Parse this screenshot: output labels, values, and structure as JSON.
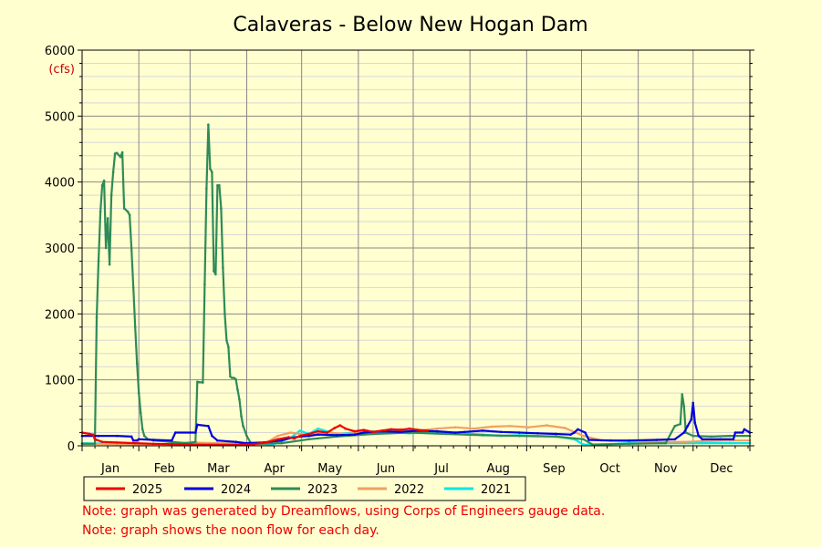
{
  "notes": [
    "Note: graph was generated by Dreamflows, using Corps of Engineers gauge data.",
    "Note: graph shows the noon flow for each day."
  ],
  "chart_data": {
    "type": "line",
    "title": "Calaveras - Below New Hogan Dam",
    "ylabel_unit": "(cfs)",
    "ylim": [
      0,
      6000
    ],
    "yticks": [
      0,
      1000,
      2000,
      3000,
      4000,
      5000,
      6000
    ],
    "xlim": [
      1,
      366
    ],
    "month_labels": [
      "Jan",
      "Feb",
      "Mar",
      "Apr",
      "May",
      "Jun",
      "Jul",
      "Aug",
      "Sep",
      "Oct",
      "Nov",
      "Dec"
    ],
    "month_starts": [
      1,
      32,
      60,
      91,
      121,
      152,
      182,
      213,
      244,
      274,
      305,
      335,
      366
    ],
    "grid": true,
    "legend_position": "bottom",
    "series": [
      {
        "name": "2021",
        "color": "#00e8e8",
        "points": [
          [
            1,
            40
          ],
          [
            20,
            30
          ],
          [
            40,
            25
          ],
          [
            60,
            20
          ],
          [
            75,
            20
          ],
          [
            85,
            60
          ],
          [
            95,
            30
          ],
          [
            105,
            20
          ],
          [
            115,
            120
          ],
          [
            120,
            230
          ],
          [
            125,
            180
          ],
          [
            130,
            260
          ],
          [
            140,
            180
          ],
          [
            150,
            200
          ],
          [
            160,
            220
          ],
          [
            170,
            200
          ],
          [
            180,
            190
          ],
          [
            190,
            210
          ],
          [
            200,
            200
          ],
          [
            210,
            190
          ],
          [
            220,
            170
          ],
          [
            230,
            150
          ],
          [
            240,
            160
          ],
          [
            250,
            150
          ],
          [
            260,
            140
          ],
          [
            270,
            100
          ],
          [
            275,
            20
          ],
          [
            285,
            20
          ],
          [
            300,
            40
          ],
          [
            320,
            40
          ],
          [
            340,
            40
          ],
          [
            355,
            40
          ],
          [
            366,
            40
          ]
        ]
      },
      {
        "name": "2022",
        "color": "#f0a060",
        "points": [
          [
            1,
            30
          ],
          [
            20,
            25
          ],
          [
            40,
            20
          ],
          [
            60,
            50
          ],
          [
            75,
            40
          ],
          [
            90,
            30
          ],
          [
            100,
            20
          ],
          [
            108,
            150
          ],
          [
            115,
            200
          ],
          [
            125,
            160
          ],
          [
            135,
            200
          ],
          [
            145,
            180
          ],
          [
            155,
            200
          ],
          [
            165,
            230
          ],
          [
            175,
            250
          ],
          [
            185,
            230
          ],
          [
            195,
            260
          ],
          [
            205,
            280
          ],
          [
            215,
            260
          ],
          [
            225,
            290
          ],
          [
            235,
            300
          ],
          [
            245,
            280
          ],
          [
            255,
            310
          ],
          [
            265,
            270
          ],
          [
            275,
            150
          ],
          [
            285,
            80
          ],
          [
            300,
            70
          ],
          [
            315,
            60
          ],
          [
            330,
            60
          ],
          [
            340,
            70
          ],
          [
            355,
            80
          ],
          [
            366,
            80
          ]
        ]
      },
      {
        "name": "2023",
        "color": "#2e8b57",
        "points": [
          [
            1,
            30
          ],
          [
            8,
            30
          ],
          [
            9,
            1950
          ],
          [
            10,
            2800
          ],
          [
            11,
            3550
          ],
          [
            12,
            3950
          ],
          [
            13,
            4020
          ],
          [
            14,
            3000
          ],
          [
            15,
            3450
          ],
          [
            16,
            2750
          ],
          [
            17,
            3800
          ],
          [
            18,
            4150
          ],
          [
            19,
            4430
          ],
          [
            20,
            4440
          ],
          [
            22,
            4380
          ],
          [
            23,
            4450
          ],
          [
            24,
            3600
          ],
          [
            26,
            3550
          ],
          [
            27,
            3500
          ],
          [
            28,
            3000
          ],
          [
            29,
            2400
          ],
          [
            30,
            1800
          ],
          [
            31,
            1250
          ],
          [
            32,
            800
          ],
          [
            33,
            500
          ],
          [
            34,
            250
          ],
          [
            35,
            150
          ],
          [
            37,
            100
          ],
          [
            40,
            80
          ],
          [
            50,
            60
          ],
          [
            58,
            40
          ],
          [
            63,
            60
          ],
          [
            64,
            970
          ],
          [
            67,
            960
          ],
          [
            68,
            2450
          ],
          [
            69,
            3900
          ],
          [
            70,
            4870
          ],
          [
            71,
            4200
          ],
          [
            72,
            4150
          ],
          [
            73,
            2650
          ],
          [
            74,
            2600
          ],
          [
            75,
            3950
          ],
          [
            76,
            3950
          ],
          [
            77,
            3600
          ],
          [
            78,
            2700
          ],
          [
            79,
            2000
          ],
          [
            80,
            1600
          ],
          [
            81,
            1500
          ],
          [
            82,
            1050
          ],
          [
            83,
            1030
          ],
          [
            84,
            1030
          ],
          [
            85,
            1010
          ],
          [
            86,
            850
          ],
          [
            87,
            700
          ],
          [
            88,
            450
          ],
          [
            89,
            300
          ],
          [
            91,
            150
          ],
          [
            93,
            50
          ],
          [
            95,
            30
          ],
          [
            110,
            40
          ],
          [
            125,
            100
          ],
          [
            140,
            140
          ],
          [
            160,
            180
          ],
          [
            180,
            200
          ],
          [
            200,
            180
          ],
          [
            220,
            160
          ],
          [
            240,
            150
          ],
          [
            260,
            140
          ],
          [
            275,
            100
          ],
          [
            280,
            20
          ],
          [
            300,
            30
          ],
          [
            320,
            40
          ],
          [
            325,
            300
          ],
          [
            328,
            330
          ],
          [
            329,
            780
          ],
          [
            330,
            600
          ],
          [
            331,
            200
          ],
          [
            335,
            150
          ],
          [
            345,
            140
          ],
          [
            355,
            150
          ],
          [
            366,
            150
          ]
        ]
      },
      {
        "name": "2024",
        "color": "#0000dd",
        "points": [
          [
            1,
            150
          ],
          [
            10,
            150
          ],
          [
            20,
            150
          ],
          [
            28,
            140
          ],
          [
            29,
            80
          ],
          [
            31,
            80
          ],
          [
            32,
            100
          ],
          [
            40,
            90
          ],
          [
            50,
            80
          ],
          [
            52,
            200
          ],
          [
            63,
            200
          ],
          [
            64,
            320
          ],
          [
            70,
            300
          ],
          [
            72,
            150
          ],
          [
            75,
            80
          ],
          [
            85,
            60
          ],
          [
            90,
            40
          ],
          [
            100,
            50
          ],
          [
            110,
            80
          ],
          [
            115,
            120
          ],
          [
            120,
            140
          ],
          [
            125,
            150
          ],
          [
            130,
            170
          ],
          [
            140,
            160
          ],
          [
            150,
            170
          ],
          [
            155,
            200
          ],
          [
            165,
            220
          ],
          [
            175,
            210
          ],
          [
            185,
            230
          ],
          [
            195,
            220
          ],
          [
            205,
            200
          ],
          [
            210,
            210
          ],
          [
            220,
            230
          ],
          [
            230,
            210
          ],
          [
            240,
            200
          ],
          [
            250,
            190
          ],
          [
            260,
            180
          ],
          [
            268,
            170
          ],
          [
            270,
            200
          ],
          [
            272,
            250
          ],
          [
            276,
            200
          ],
          [
            278,
            90
          ],
          [
            290,
            80
          ],
          [
            300,
            80
          ],
          [
            315,
            90
          ],
          [
            325,
            100
          ],
          [
            330,
            200
          ],
          [
            332,
            300
          ],
          [
            334,
            400
          ],
          [
            335,
            650
          ],
          [
            336,
            350
          ],
          [
            338,
            150
          ],
          [
            340,
            100
          ],
          [
            350,
            100
          ],
          [
            357,
            100
          ],
          [
            358,
            200
          ],
          [
            362,
            200
          ],
          [
            363,
            250
          ],
          [
            366,
            200
          ]
        ]
      },
      {
        "name": "2025",
        "color": "#ee0000",
        "points": [
          [
            1,
            200
          ],
          [
            5,
            180
          ],
          [
            7,
            170
          ],
          [
            8,
            100
          ],
          [
            9,
            90
          ],
          [
            12,
            60
          ],
          [
            20,
            50
          ],
          [
            30,
            40
          ],
          [
            40,
            30
          ],
          [
            50,
            25
          ],
          [
            60,
            20
          ],
          [
            75,
            15
          ],
          [
            85,
            15
          ],
          [
            95,
            25
          ],
          [
            103,
            60
          ],
          [
            108,
            100
          ],
          [
            114,
            130
          ],
          [
            117,
            110
          ],
          [
            120,
            150
          ],
          [
            125,
            180
          ],
          [
            130,
            220
          ],
          [
            135,
            200
          ],
          [
            139,
            270
          ],
          [
            142,
            310
          ],
          [
            145,
            260
          ],
          [
            150,
            220
          ],
          [
            155,
            240
          ],
          [
            160,
            210
          ],
          [
            165,
            230
          ],
          [
            170,
            250
          ],
          [
            175,
            240
          ],
          [
            180,
            260
          ],
          [
            185,
            240
          ],
          [
            190,
            230
          ]
        ]
      }
    ]
  }
}
